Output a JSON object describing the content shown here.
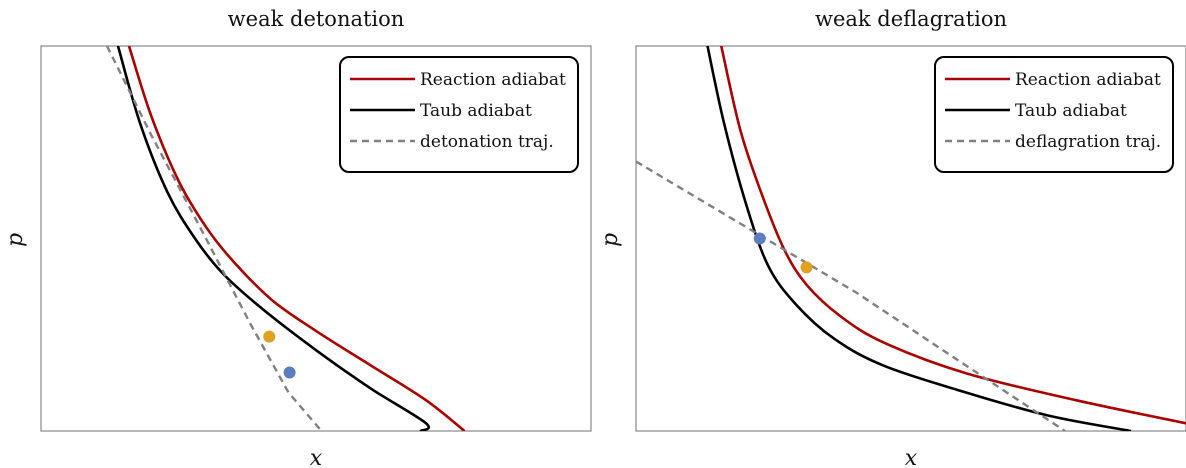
{
  "chart_data": [
    {
      "type": "line",
      "title": "weak detonation",
      "xlabel": "x",
      "ylabel": "p",
      "xticks": [],
      "yticks": [],
      "xlim": [
        0,
        1
      ],
      "ylim": [
        0,
        1
      ],
      "grid": false,
      "legend_position": "top-right",
      "series": [
        {
          "name": "Reaction adiabat",
          "style": "solid",
          "color": "#aa0000",
          "x": [
            0.16,
            0.2,
            0.25,
            0.3,
            0.35,
            0.42,
            0.5,
            0.6,
            0.7,
            0.77
          ],
          "y": [
            1.0,
            0.82,
            0.65,
            0.53,
            0.44,
            0.34,
            0.26,
            0.17,
            0.08,
            0.0
          ]
        },
        {
          "name": "Taub adiabat",
          "style": "solid",
          "color": "#000000",
          "x": [
            0.14,
            0.18,
            0.23,
            0.28,
            0.33,
            0.4,
            0.5,
            0.6,
            0.7,
            0.69
          ],
          "y": [
            1.0,
            0.8,
            0.62,
            0.5,
            0.41,
            0.32,
            0.21,
            0.11,
            0.02,
            0.0
          ]
        },
        {
          "name": "detonation traj.",
          "style": "dashed",
          "color": "#808080",
          "x": [
            0.12,
            0.2,
            0.3,
            0.38,
            0.45,
            0.51
          ],
          "y": [
            1.0,
            0.77,
            0.5,
            0.28,
            0.1,
            0.0
          ]
        }
      ],
      "points": [
        {
          "label": "orange",
          "color": "#e0a020",
          "x": 0.415,
          "y": 0.245
        },
        {
          "label": "blue",
          "color": "#5b7fbe",
          "x": 0.452,
          "y": 0.152
        }
      ]
    },
    {
      "type": "line",
      "title": "weak deflagration",
      "xlabel": "x",
      "ylabel": "p",
      "xticks": [],
      "yticks": [],
      "xlim": [
        0,
        1
      ],
      "ylim": [
        0,
        1
      ],
      "grid": false,
      "legend_position": "top-right",
      "series": [
        {
          "name": "Reaction adiabat",
          "style": "solid",
          "color": "#aa0000",
          "x": [
            0.155,
            0.19,
            0.23,
            0.27,
            0.31,
            0.37,
            0.45,
            0.6,
            0.8,
            1.0
          ],
          "y": [
            1.0,
            0.78,
            0.61,
            0.47,
            0.38,
            0.3,
            0.23,
            0.15,
            0.08,
            0.02
          ]
        },
        {
          "name": "Taub adiabat",
          "style": "solid",
          "color": "#000000",
          "x": [
            0.13,
            0.16,
            0.2,
            0.24,
            0.29,
            0.36,
            0.45,
            0.6,
            0.75,
            0.9
          ],
          "y": [
            1.0,
            0.8,
            0.59,
            0.43,
            0.33,
            0.24,
            0.17,
            0.1,
            0.04,
            0.0
          ]
        },
        {
          "name": "deflagration traj.",
          "style": "dashed",
          "color": "#808080",
          "x": [
            0.0,
            0.2,
            0.4,
            0.6,
            0.78
          ],
          "y": [
            0.7,
            0.53,
            0.36,
            0.17,
            0.0
          ]
        }
      ],
      "points": [
        {
          "label": "blue",
          "color": "#5b7fbe",
          "x": 0.225,
          "y": 0.5
        },
        {
          "label": "orange",
          "color": "#e0a020",
          "x": 0.31,
          "y": 0.425
        }
      ]
    }
  ]
}
